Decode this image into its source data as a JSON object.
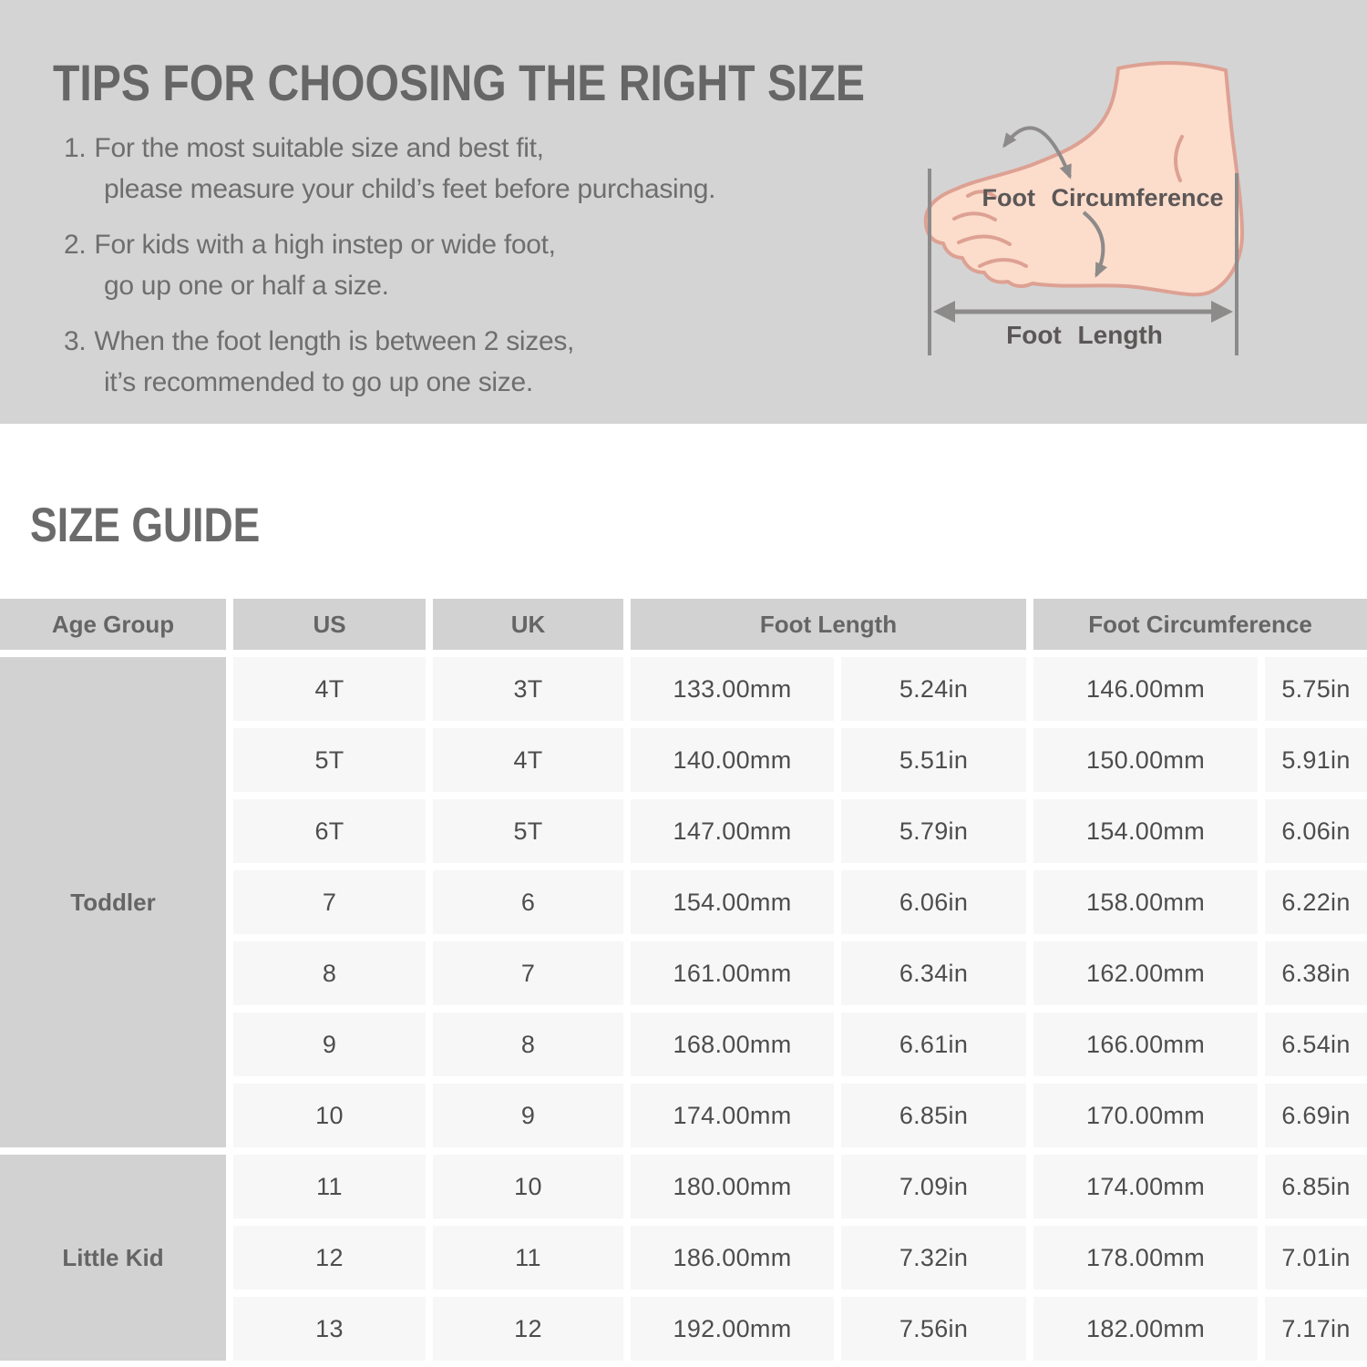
{
  "tips": {
    "title": "TIPS FOR CHOOSING THE RIGHT SIZE",
    "items": [
      {
        "number": "1.",
        "line1": "For the most suitable size and best fit,",
        "line2": "please measure your child’s feet before purchasing."
      },
      {
        "number": "2.",
        "line1": "For kids with a high instep or wide foot,",
        "line2": "go up one or half a size."
      },
      {
        "number": "3.",
        "line1": "When the foot length is between 2 sizes,",
        "line2": "it’s recommended to go up one size."
      }
    ]
  },
  "foot_diagram": {
    "circumference_label": "Foot Circumference",
    "length_label": "Foot Length"
  },
  "size_guide": {
    "title": "SIZE GUIDE",
    "headers": {
      "age_group": "Age Group",
      "us": "US",
      "uk": "UK",
      "foot_length": "Foot Length",
      "foot_circumference": "Foot Circumference"
    },
    "groups": [
      {
        "label": "Toddler",
        "rows": [
          [
            "4T",
            "3T",
            "133.00mm",
            "5.24in",
            "146.00mm",
            "5.75in"
          ],
          [
            "5T",
            "4T",
            "140.00mm",
            "5.51in",
            "150.00mm",
            "5.91in"
          ],
          [
            "6T",
            "5T",
            "147.00mm",
            "5.79in",
            "154.00mm",
            "6.06in"
          ],
          [
            "7",
            "6",
            "154.00mm",
            "6.06in",
            "158.00mm",
            "6.22in"
          ],
          [
            "8",
            "7",
            "161.00mm",
            "6.34in",
            "162.00mm",
            "6.38in"
          ],
          [
            "9",
            "8",
            "168.00mm",
            "6.61in",
            "166.00mm",
            "6.54in"
          ],
          [
            "10",
            "9",
            "174.00mm",
            "6.85in",
            "170.00mm",
            "6.69in"
          ]
        ]
      },
      {
        "label": "Little Kid",
        "rows": [
          [
            "11",
            "10",
            "180.00mm",
            "7.09in",
            "174.00mm",
            "6.85in"
          ],
          [
            "12",
            "11",
            "186.00mm",
            "7.32in",
            "178.00mm",
            "7.01in"
          ],
          [
            "13",
            "12",
            "192.00mm",
            "7.56in",
            "182.00mm",
            "7.17in"
          ]
        ]
      }
    ]
  },
  "colors": {
    "panel_background": "#d4d4d5",
    "table_header_background": "#d2d2d3",
    "table_cell_background": "#f7f7f7",
    "heading_text": "#666666",
    "body_text": "#6e6e6e",
    "table_text": "#4d4d4d",
    "foot_skin": "#fcdccb",
    "foot_outline": "#dda193",
    "arrow_gray": "#8d8a8a"
  }
}
